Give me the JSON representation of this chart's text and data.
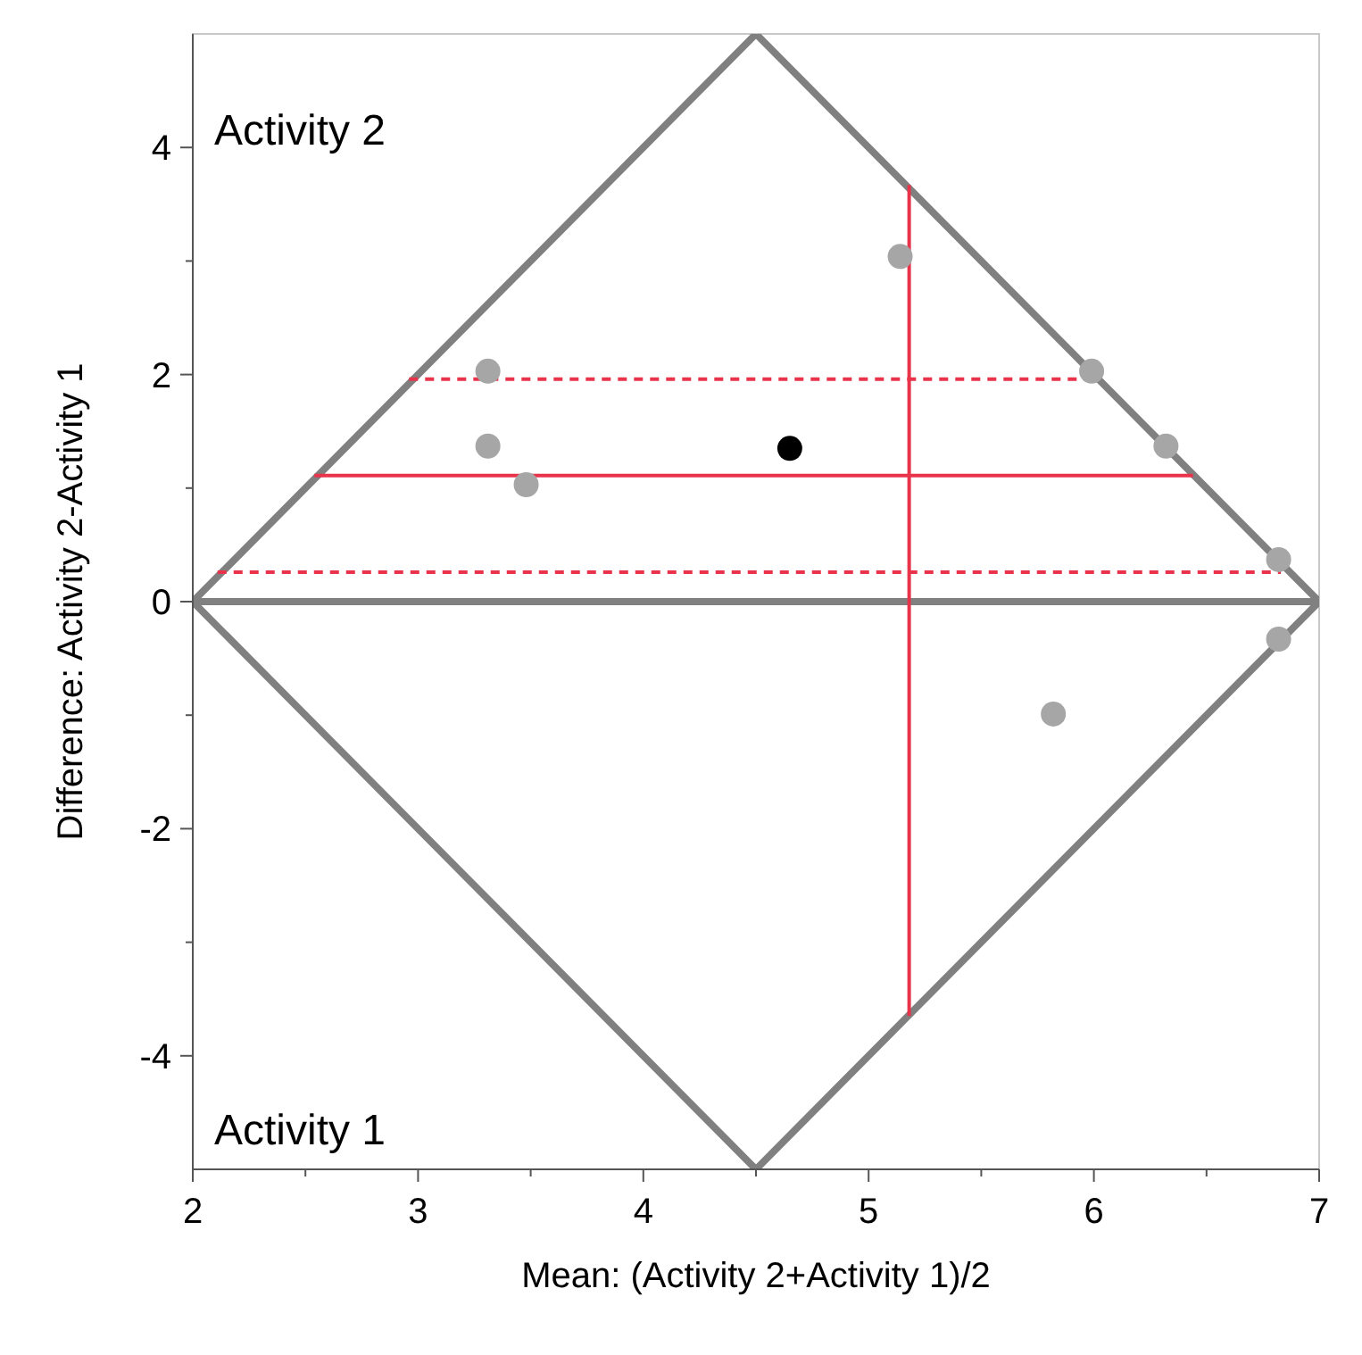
{
  "chart_data": {
    "type": "scatter",
    "xlabel": "Mean: (Activity 2+Activity 1)/2",
    "ylabel": "Difference: Activity 2-Activity 1",
    "annotations": [
      "Activity 2",
      "Activity 1"
    ],
    "xlim": [
      2,
      7
    ],
    "ylim": [
      -5,
      5
    ],
    "xticks": [
      2,
      {
        "value": 2.5,
        "label": null
      },
      3,
      {
        "value": 3.5,
        "label": null
      },
      4,
      {
        "value": 4.5,
        "label": null
      },
      5,
      {
        "value": 5.5,
        "label": null
      },
      6,
      {
        "value": 6.5,
        "label": null
      },
      7
    ],
    "yticks": [
      -4,
      {
        "value": -3,
        "label": null
      },
      -2,
      {
        "value": -1,
        "label": null
      },
      0,
      {
        "value": 1,
        "label": null
      },
      2,
      {
        "value": 3,
        "label": null
      },
      4
    ],
    "grid": false,
    "ref_lines": [
      {
        "axis": "y",
        "value": 0,
        "color": "#808080",
        "line_style": "solid"
      }
    ],
    "series": [
      {
        "type": "line",
        "color": "#808080",
        "marker": "none",
        "line_style": "solid",
        "x": [
          2,
          4.5,
          7
        ],
        "values": [
          0,
          5,
          0
        ]
      },
      {
        "type": "line",
        "color": "#808080",
        "marker": "none",
        "line_style": "solid",
        "x": [
          2,
          4.5,
          7
        ],
        "values": [
          0,
          -5,
          0
        ]
      },
      {
        "type": "line",
        "color": "#e8334a",
        "marker": "none",
        "line_style": "solid",
        "x": [
          2.54,
          6.44
        ],
        "values": [
          1.11,
          1.11
        ]
      },
      {
        "type": "line",
        "color": "#e8334a",
        "marker": "none",
        "line_style": "dashed",
        "x": [
          2.96,
          6.0
        ],
        "values": [
          1.96,
          1.96
        ]
      },
      {
        "type": "line",
        "color": "#e8334a",
        "marker": "none",
        "line_style": "dashed",
        "x": [
          2.11,
          6.83
        ],
        "values": [
          0.26,
          0.26
        ]
      },
      {
        "type": "line",
        "color": "#e8334a",
        "marker": "none",
        "line_style": "solid",
        "x": [
          5.18,
          5.18
        ],
        "values": [
          3.67,
          -3.65
        ]
      },
      {
        "type": "scatter",
        "color": "#a6a6a6",
        "marker": "circle",
        "x": [
          3.31,
          3.31,
          3.48,
          5.14,
          5.99,
          6.32,
          6.82,
          6.82,
          5.82
        ],
        "values": [
          2.03,
          1.37,
          1.03,
          3.04,
          2.03,
          1.37,
          0.37,
          -0.33,
          -0.99
        ]
      },
      {
        "type": "scatter",
        "color": "#000000",
        "marker": "circle",
        "x": [
          4.65
        ],
        "values": [
          1.35
        ]
      }
    ]
  }
}
